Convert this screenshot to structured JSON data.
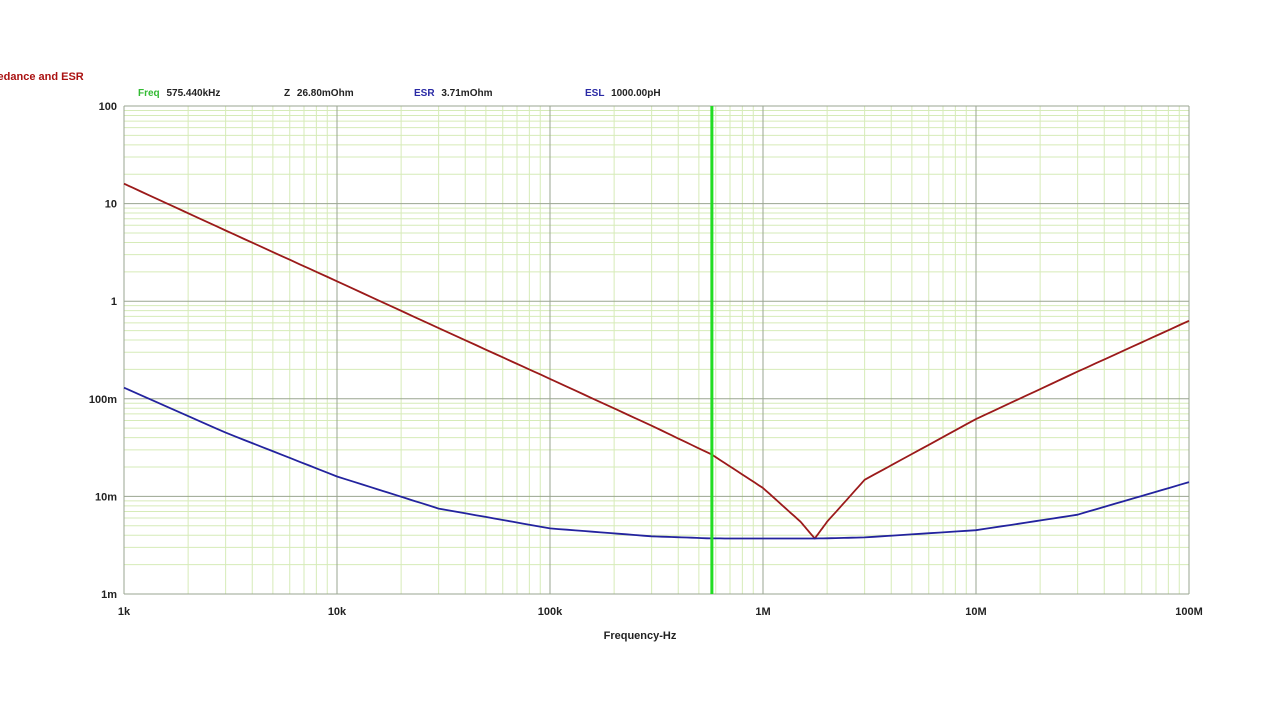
{
  "chart_data": {
    "type": "line",
    "title": "Impedance and ESR",
    "xlabel": "Frequency-Hz",
    "ylabel": "",
    "x_scale": "log",
    "y_scale": "log",
    "xlim": [
      1000,
      100000000
    ],
    "ylim": [
      0.001,
      100
    ],
    "grid": true,
    "x_tick_labels": [
      "1k",
      "10k",
      "100k",
      "1M",
      "10M",
      "100M"
    ],
    "y_tick_labels": [
      "100",
      "10",
      "1",
      "100m",
      "10m",
      "1m"
    ],
    "cursor": {
      "x": 575440
    },
    "readouts": {
      "freq_label": "Freq",
      "freq_value": "575.440kHz",
      "z_label": "Z",
      "z_value": "26.80mOhm",
      "esr_label": "ESR",
      "esr_value": "3.71mOhm",
      "esl_label": "ESL",
      "esl_value": "1000.00pH"
    },
    "series": [
      {
        "key": "Z",
        "color": "#9b1a1a",
        "x": [
          1000,
          3000,
          10000,
          30000,
          100000,
          300000,
          575440,
          1000000,
          1500000,
          1750000,
          2000000,
          3000000,
          10000000,
          30000000,
          100000000
        ],
        "y": [
          16,
          5.3,
          1.6,
          0.53,
          0.16,
          0.053,
          0.0268,
          0.0122,
          0.0055,
          0.0037,
          0.0055,
          0.0148,
          0.062,
          0.19,
          0.63
        ]
      },
      {
        "key": "ESR",
        "color": "#23239e",
        "x": [
          1000,
          3000,
          10000,
          30000,
          100000,
          300000,
          575440,
          1000000,
          1750000,
          3000000,
          10000000,
          30000000,
          100000000
        ],
        "y": [
          0.13,
          0.045,
          0.016,
          0.0075,
          0.0047,
          0.0039,
          0.00371,
          0.0037,
          0.0037,
          0.0038,
          0.0045,
          0.0065,
          0.014
        ]
      }
    ],
    "colors": {
      "background": "#ffffff",
      "plot_background": "#ffffff",
      "minor_grid": "#d6ebb8",
      "major_grid": "#9aa590",
      "cursor": "#22dd22",
      "title": "#aa1111",
      "freq_label": "#33bb33",
      "z_label": "#222222",
      "esr_label": "#2a2aa5",
      "esl_label": "#2a2aa5"
    }
  }
}
